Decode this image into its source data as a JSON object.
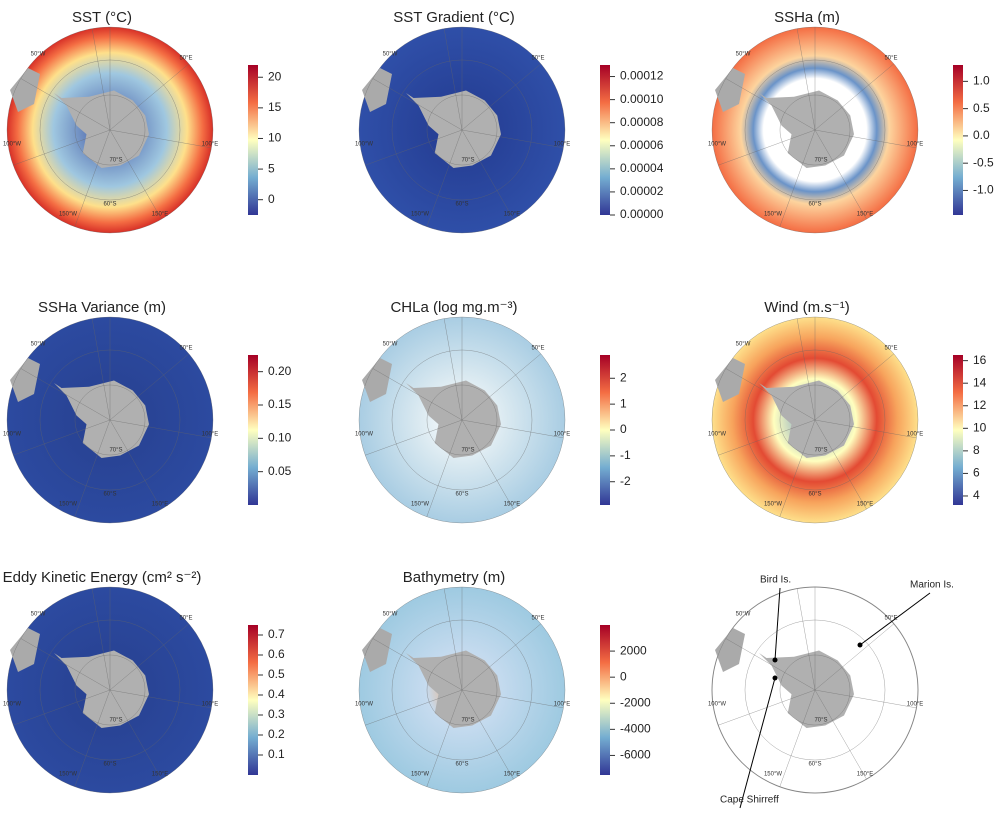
{
  "graticule_labels": [
    "50°W",
    "50°E",
    "100°W",
    "100°E",
    "150°W",
    "150°E",
    "60°S",
    "70°S"
  ],
  "panels": [
    {
      "title": "SST (°C)",
      "range": [
        -2.5,
        22
      ],
      "ticks": [
        0,
        5,
        10,
        15,
        20
      ]
    },
    {
      "title": "SST Gradient (°C)",
      "range": [
        0,
        0.00013
      ],
      "ticks": [
        {
          "value": 0,
          "label": "0.00000"
        },
        {
          "value": 2e-05,
          "label": "0.00002"
        },
        {
          "value": 4e-05,
          "label": "0.00004"
        },
        {
          "value": 6e-05,
          "label": "0.00006"
        },
        {
          "value": 8e-05,
          "label": "0.00008"
        },
        {
          "value": 0.0001,
          "label": "0.00010"
        },
        {
          "value": 0.00012,
          "label": "0.00012"
        }
      ]
    },
    {
      "title": "SSHa (m)",
      "range": [
        -1.45,
        1.3
      ],
      "ticks": [
        {
          "value": -1,
          "label": "-1.0"
        },
        -0.5,
        {
          "value": 0,
          "label": "0.0"
        },
        0.5,
        {
          "value": 1,
          "label": "1.0"
        }
      ]
    },
    {
      "title": "SSHa Variance (m)",
      "range": [
        0,
        0.225
      ],
      "ticks": [
        0.05,
        {
          "value": 0.1,
          "label": "0.10"
        },
        0.15,
        {
          "value": 0.2,
          "label": "0.20"
        }
      ]
    },
    {
      "title": "CHLa (log mg.m⁻³)",
      "range": [
        -2.9,
        2.9
      ],
      "ticks": [
        -2,
        -1,
        0,
        1,
        2
      ]
    },
    {
      "title": "Wind (m.s⁻¹)",
      "range": [
        3.2,
        16.5
      ],
      "ticks": [
        4,
        6,
        8,
        10,
        12,
        14,
        16
      ]
    },
    {
      "title": "Eddy Kinetic Energy (cm² s⁻²)",
      "range": [
        0,
        0.75
      ],
      "ticks": [
        0.1,
        0.2,
        0.3,
        0.4,
        0.5,
        0.6,
        0.7
      ]
    },
    {
      "title": "Bathymetry (m)",
      "range": [
        -7500,
        4000
      ],
      "ticks": [
        -6000,
        -4000,
        -2000,
        0,
        2000
      ]
    },
    {
      "annotations": [
        "Bird Is.",
        "Marion Is.",
        "Cape Shirreff"
      ]
    }
  ]
}
